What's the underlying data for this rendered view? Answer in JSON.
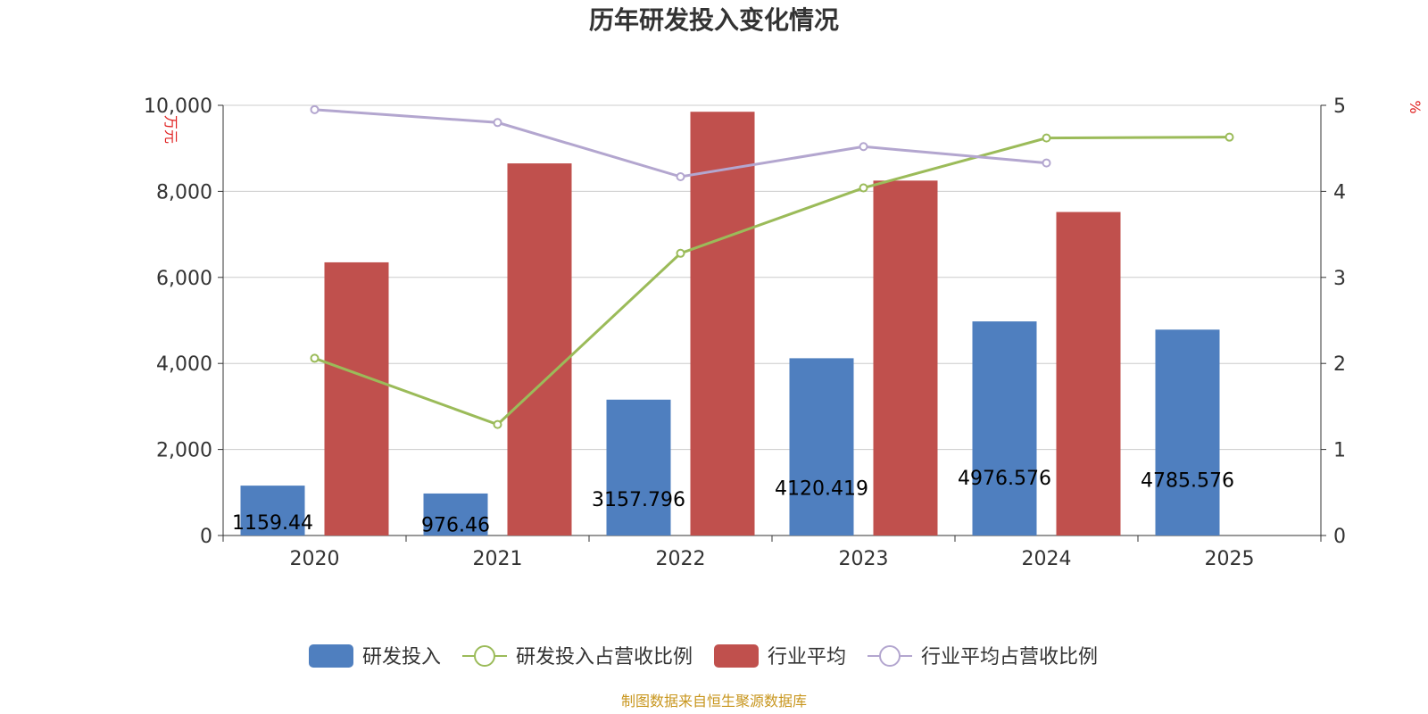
{
  "chart_data": {
    "type": "bar",
    "title": "历年研发投入变化情况",
    "categories": [
      "2020",
      "2021",
      "2022",
      "2023",
      "2024",
      "2025"
    ],
    "left_axis": {
      "unit": "万元",
      "range": [
        0,
        10000
      ],
      "ticks": [
        0,
        2000,
        4000,
        6000,
        8000,
        10000
      ],
      "tick_labels": [
        "0",
        "2,000",
        "4,000",
        "6,000",
        "8,000",
        "10,000"
      ]
    },
    "right_axis": {
      "unit": "%",
      "range": [
        0,
        5
      ],
      "ticks": [
        0,
        1,
        2,
        3,
        4,
        5
      ],
      "tick_labels": [
        "0",
        "1",
        "2",
        "3",
        "4",
        "5"
      ]
    },
    "grid": true,
    "legend_position": "bottom",
    "series": [
      {
        "name": "研发投入",
        "kind": "bar",
        "axis": "left",
        "color": "#4f7fbf",
        "values": [
          1159.44,
          976.46,
          3157.796,
          4120.419,
          4976.576,
          4785.576
        ],
        "labels": [
          "1159.44",
          "976.46",
          "3157.796",
          "4120.419",
          "4976.576",
          "4785.576"
        ]
      },
      {
        "name": "研发投入占营收比例",
        "kind": "line",
        "axis": "right",
        "color": "#9bbb59",
        "values": [
          2.06,
          1.29,
          3.28,
          4.04,
          4.62,
          4.63
        ]
      },
      {
        "name": "行业平均",
        "kind": "bar",
        "axis": "left",
        "color": "#c0504d",
        "values": [
          6350,
          8650,
          9850,
          8250,
          7520,
          null
        ]
      },
      {
        "name": "行业平均占营收比例",
        "kind": "line",
        "axis": "right",
        "color": "#b3a6cf",
        "values": [
          4.95,
          4.8,
          4.17,
          4.52,
          4.33,
          null
        ]
      }
    ],
    "source": "制图数据来自恒生聚源数据库"
  }
}
